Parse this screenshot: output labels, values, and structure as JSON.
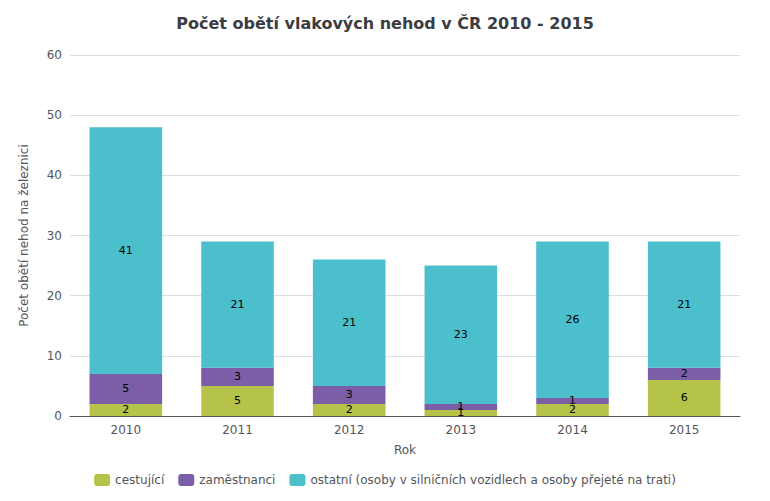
{
  "chart_data": {
    "type": "bar",
    "title": "Počet obětí vlakových nehod v ČR 2010 - 2015",
    "xlabel": "Rok",
    "ylabel": "Počet obětí nehod na železnici",
    "categories": [
      "2010",
      "2011",
      "2012",
      "2013",
      "2014",
      "2015"
    ],
    "series": [
      {
        "name": "cestující",
        "color": "#b5c448",
        "values": [
          2,
          5,
          2,
          1,
          2,
          6
        ]
      },
      {
        "name": "zaměstnanci",
        "color": "#7b5ea7",
        "values": [
          5,
          3,
          3,
          1,
          1,
          2
        ]
      },
      {
        "name": "ostatní (osoby v silničních vozidlech a osoby přejeté na trati)",
        "color": "#4bbfcc",
        "values": [
          41,
          21,
          21,
          23,
          26,
          21
        ]
      }
    ],
    "stacked": true,
    "data_labels": true,
    "ylim": [
      0,
      60
    ],
    "yticks": [
      0,
      10,
      20,
      30,
      40,
      50,
      60
    ],
    "grid": true,
    "legend": "bottom"
  }
}
